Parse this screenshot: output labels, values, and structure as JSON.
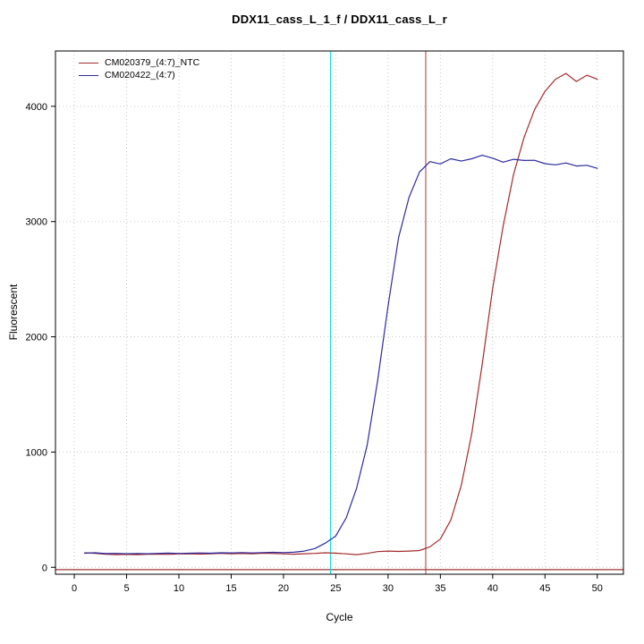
{
  "chart_data": {
    "type": "line",
    "title": "DDX11_cass_L_1_f / DDX11_cass_L_r",
    "xlabel": "Cycle",
    "ylabel": "Fluorescent",
    "x": [
      1,
      2,
      3,
      4,
      5,
      6,
      7,
      8,
      9,
      10,
      11,
      12,
      13,
      14,
      15,
      16,
      17,
      18,
      19,
      20,
      21,
      22,
      23,
      24,
      25,
      26,
      27,
      28,
      29,
      30,
      31,
      32,
      33,
      34,
      35,
      36,
      37,
      38,
      39,
      40,
      41,
      42,
      43,
      44,
      45,
      46,
      47,
      48,
      49,
      50
    ],
    "series": [
      {
        "name": "CM020379_(4:7)_NTC",
        "color": "#a52a2a",
        "values": [
          126,
          121,
          113,
          110,
          112,
          110,
          113,
          115,
          112,
          116,
          118,
          115,
          118,
          121,
          118,
          120,
          118,
          122,
          120,
          117,
          114,
          118,
          121,
          126,
          122,
          117,
          110,
          121,
          136,
          141,
          138,
          141,
          146,
          178,
          245,
          410,
          710,
          1160,
          1760,
          2420,
          2960,
          3410,
          3730,
          3970,
          4130,
          4235,
          4285,
          4215,
          4270,
          4235
        ]
      },
      {
        "name": "CM020422_(4:7)",
        "color": "#2b2ba0",
        "values": [
          122,
          126,
          119,
          121,
          118,
          120,
          118,
          121,
          123,
          120,
          122,
          125,
          122,
          126,
          125,
          128,
          125,
          128,
          130,
          128,
          131,
          141,
          163,
          210,
          272,
          430,
          690,
          1060,
          1620,
          2270,
          2860,
          3210,
          3430,
          3520,
          3500,
          3545,
          3525,
          3545,
          3575,
          3550,
          3515,
          3540,
          3530,
          3532,
          3502,
          3492,
          3508,
          3482,
          3488,
          3462
        ]
      }
    ],
    "xticks": [
      0,
      5,
      10,
      15,
      20,
      25,
      30,
      35,
      40,
      45,
      50
    ],
    "yticks": [
      0,
      1000,
      2000,
      3000,
      4000
    ],
    "xlim": [
      -1.8,
      52.5
    ],
    "ylim": [
      -60,
      4480
    ],
    "grid": true,
    "grid_color": "#c8c8c8",
    "legend_position": "top-left",
    "markers": {
      "threshold_line": {
        "y": -20,
        "color": "#8b0000"
      },
      "vertical_lines": [
        {
          "x": 24.5,
          "color": "#00dddd",
          "name": "ct-marker-cyan"
        },
        {
          "x": 33.6,
          "color": "#aa3939",
          "name": "ct-marker-red"
        }
      ]
    }
  }
}
